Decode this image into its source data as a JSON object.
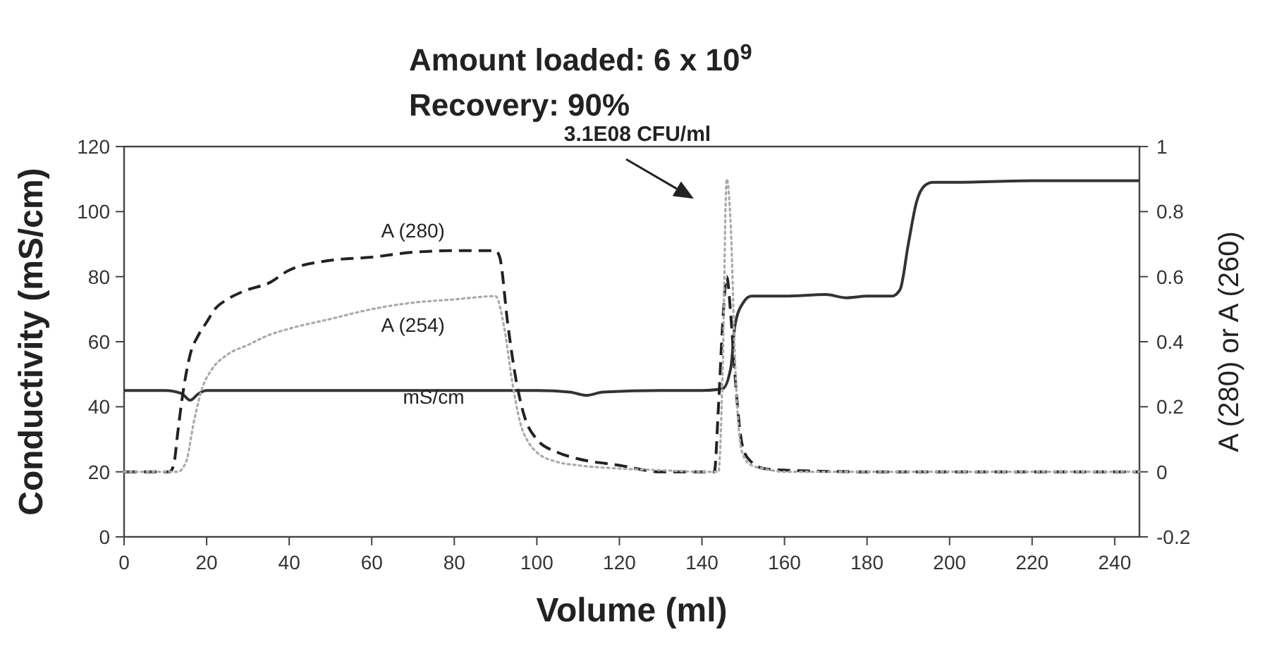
{
  "chart_data": {
    "type": "line",
    "title": "Amount loaded: 6 x 10$^{9}$",
    "subtitle": "Recovery: 90%",
    "xlabel": "Volume (ml)",
    "ylabel": "Conductivity (mS/cm)",
    "y2label": "A (280) or A (260)",
    "xlim": [
      0,
      246
    ],
    "xticks": [
      0,
      20,
      40,
      60,
      80,
      100,
      120,
      140,
      160,
      180,
      200,
      220,
      240
    ],
    "ylim": [
      0,
      120
    ],
    "yticks": [
      0,
      20,
      40,
      60,
      80,
      100,
      120
    ],
    "y2lim": [
      -0.2,
      1
    ],
    "y2ticks": [
      -0.2,
      0,
      0.2,
      0.4,
      0.6,
      0.8,
      1
    ],
    "grid": false,
    "annotations": [
      "3.1E08 CFU/ml"
    ],
    "series": [
      {
        "name": "mS/cm",
        "color": "#333333",
        "line_style": "solid",
        "x": [
          0,
          10,
          14,
          16,
          18,
          20,
          40,
          60,
          80,
          100,
          108,
          112,
          116,
          130,
          140,
          145,
          147,
          148,
          150,
          152,
          160,
          170,
          175,
          180,
          186,
          188,
          190,
          192,
          194,
          196,
          200,
          220,
          246
        ],
        "values": [
          45,
          45,
          44,
          42,
          44,
          45,
          45,
          45,
          45,
          45,
          44.5,
          43.5,
          44.5,
          45,
          45,
          45.5,
          52,
          65,
          72,
          74,
          74,
          74.5,
          73.5,
          74,
          74,
          76,
          90,
          103,
          108,
          109,
          109,
          109.5,
          109.5
        ]
      },
      {
        "name": "A (280)",
        "color": "#222222",
        "line_style": "dashed",
        "axis": "y2",
        "x": [
          0,
          11,
          12,
          13,
          14,
          15,
          16,
          18,
          20,
          22,
          25,
          28,
          30,
          35,
          40,
          50,
          60,
          70,
          80,
          90,
          91,
          93,
          95,
          97,
          100,
          105,
          110,
          120,
          130,
          140,
          143,
          144,
          145,
          146,
          147,
          148,
          149,
          150,
          152,
          155,
          160,
          180,
          200,
          220,
          246
        ],
        "values": [
          0,
          0,
          0.02,
          0.12,
          0.22,
          0.3,
          0.36,
          0.42,
          0.46,
          0.5,
          0.53,
          0.55,
          0.56,
          0.58,
          0.62,
          0.65,
          0.66,
          0.675,
          0.68,
          0.68,
          0.66,
          0.45,
          0.28,
          0.17,
          0.1,
          0.06,
          0.04,
          0.02,
          0.0,
          0.0,
          0.0,
          0.2,
          0.45,
          0.6,
          0.48,
          0.3,
          0.15,
          0.07,
          0.03,
          0.01,
          0.005,
          0,
          0,
          0,
          0
        ]
      },
      {
        "name": "A (254)",
        "color": "#aaaaaa",
        "line_style": "dotted",
        "axis": "y2",
        "x": [
          0,
          13,
          15,
          17,
          19,
          21,
          25,
          30,
          35,
          40,
          50,
          60,
          70,
          80,
          90,
          92,
          94,
          96,
          98,
          100,
          105,
          110,
          120,
          130,
          140,
          144,
          145,
          146,
          147,
          148,
          149,
          150,
          152,
          155,
          160,
          200,
          246
        ],
        "values": [
          0,
          0,
          0.03,
          0.16,
          0.26,
          0.31,
          0.36,
          0.39,
          0.42,
          0.44,
          0.47,
          0.5,
          0.52,
          0.53,
          0.54,
          0.45,
          0.28,
          0.15,
          0.09,
          0.06,
          0.03,
          0.02,
          0.01,
          0.005,
          0,
          0,
          0.3,
          0.9,
          0.75,
          0.35,
          0.12,
          0.05,
          0.02,
          0.01,
          0,
          0,
          0
        ]
      }
    ]
  }
}
